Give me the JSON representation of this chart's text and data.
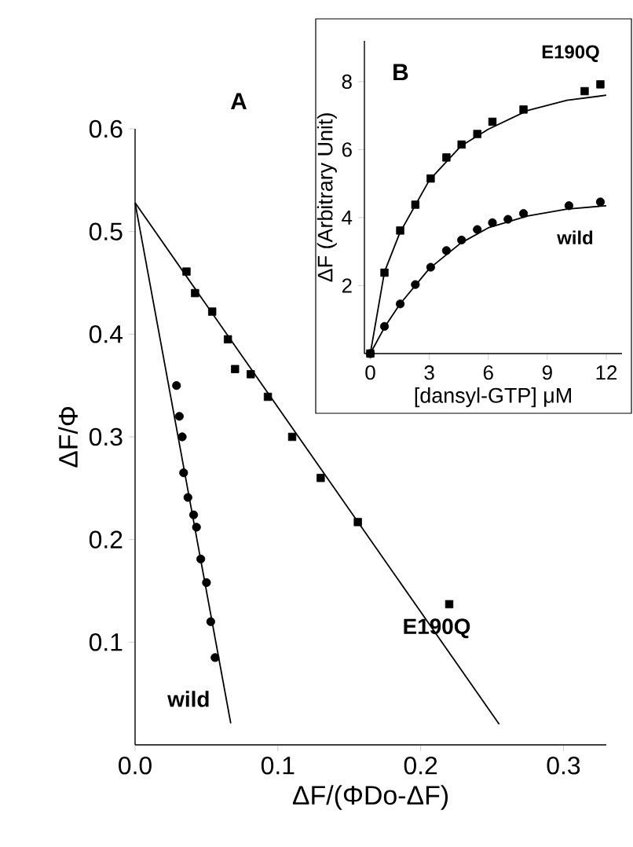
{
  "chart_data": [
    {
      "type": "scatter",
      "title": "A",
      "xlabel": "ΔF/(ΦDo-ΔF)",
      "ylabel": "ΔF/Φ",
      "xlim": [
        0,
        0.33
      ],
      "ylim": [
        0,
        0.6
      ],
      "xticks": [
        {
          "value": 0,
          "label": "0.0"
        },
        0.1,
        0.2,
        0.3
      ],
      "yticks": [
        0.1,
        0.2,
        0.3,
        0.4,
        0.5,
        0.6
      ],
      "grid": false,
      "legend": false,
      "series": [
        {
          "name": "wild",
          "marker": "circle",
          "color": "#000000",
          "x": [
            0.029,
            0.031,
            0.033,
            0.034,
            0.037,
            0.041,
            0.043,
            0.046,
            0.05,
            0.053,
            0.056
          ],
          "values": [
            0.35,
            0.32,
            0.3,
            0.265,
            0.241,
            0.224,
            0.212,
            0.181,
            0.158,
            0.12,
            0.085
          ]
        },
        {
          "type": "line",
          "color": "#000000",
          "x": [
            0,
            0.067
          ],
          "values": [
            0.528,
            0.021
          ]
        },
        {
          "name": "E190Q",
          "marker": "square",
          "color": "#000000",
          "x": [
            0.036,
            0.042,
            0.054,
            0.065,
            0.07,
            0.081,
            0.093,
            0.11,
            0.13,
            0.156,
            0.22
          ],
          "values": [
            0.461,
            0.44,
            0.422,
            0.395,
            0.366,
            0.361,
            0.339,
            0.3,
            0.26,
            0.217,
            0.137
          ]
        },
        {
          "type": "line",
          "color": "#000000",
          "x": [
            0,
            0.255
          ],
          "values": [
            0.528,
            0.02
          ]
        }
      ]
    },
    {
      "type": "scatter",
      "title": "B",
      "xlabel": "[dansyl-GTP] μM",
      "ylabel": "ΔF (Arbitrary Unit)",
      "xlim": [
        -0.3,
        12.8
      ],
      "ylim": [
        0,
        9.2
      ],
      "xticks": [
        0,
        3,
        6,
        9,
        12
      ],
      "yticks": [
        2,
        4,
        6,
        8
      ],
      "grid": false,
      "legend": false,
      "series": [
        {
          "name": "E190Q",
          "marker": "square",
          "color": "#000000",
          "x": [
            0,
            0.72,
            1.52,
            2.29,
            3.07,
            3.87,
            4.64,
            5.44,
            6.21,
            7.79,
            10.9,
            11.7
          ],
          "values": [
            0,
            2.38,
            3.62,
            4.38,
            5.15,
            5.77,
            6.15,
            6.46,
            6.82,
            7.18,
            7.72,
            7.92
          ]
        },
        {
          "type": "line",
          "color": "#000000",
          "x": [
            0,
            0.72,
            1.5,
            3,
            4.6,
            6,
            8,
            10,
            12
          ],
          "values": [
            0,
            2.4,
            3.55,
            5.1,
            6.1,
            6.6,
            7.15,
            7.45,
            7.6
          ]
        },
        {
          "name": "wild",
          "marker": "circle",
          "color": "#000000",
          "x": [
            0,
            0.72,
            1.52,
            2.29,
            3.07,
            3.87,
            4.64,
            5.44,
            6.21,
            7.0,
            7.79,
            10.1,
            11.7
          ],
          "values": [
            0,
            0.8,
            1.46,
            2.03,
            2.54,
            3.03,
            3.34,
            3.65,
            3.85,
            3.95,
            4.12,
            4.35,
            4.46
          ]
        },
        {
          "type": "line",
          "color": "#000000",
          "x": [
            0,
            0.75,
            1.5,
            3,
            4.6,
            6,
            8,
            10,
            12
          ],
          "values": [
            0,
            0.8,
            1.45,
            2.5,
            3.25,
            3.7,
            4.05,
            4.25,
            4.35
          ]
        }
      ]
    }
  ]
}
